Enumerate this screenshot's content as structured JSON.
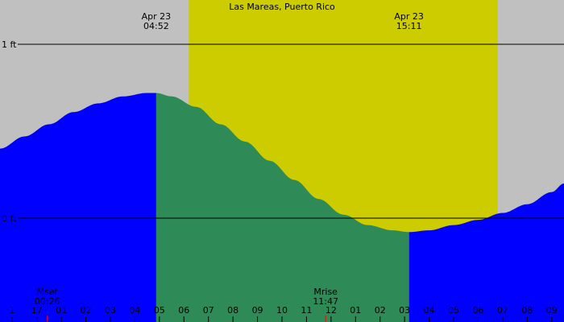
{
  "chart_data": {
    "type": "area",
    "title": "Las Mareas, Puerto Rico",
    "y_unit": "ft",
    "y_reference_lines": [
      {
        "value": 1,
        "label": "1 ft"
      },
      {
        "value": 0,
        "label": "0 ft"
      }
    ],
    "x_range_hours": [
      -1.5,
      21.5
    ],
    "x_tick_labels": [
      "1",
      "17",
      "01",
      "02",
      "03",
      "04",
      "05",
      "06",
      "07",
      "08",
      "09",
      "10",
      "11",
      "12",
      "01",
      "02",
      "03",
      "04",
      "05",
      "06",
      "07",
      "08",
      "09"
    ],
    "daylight": {
      "start_hour": 6.2,
      "end_hour": 18.8
    },
    "extremes": [
      {
        "type": "high",
        "date": "Apr 23",
        "time": "04:52",
        "hour": 4.87,
        "height_ft": 0.72
      },
      {
        "type": "low",
        "date": "Apr 23",
        "time": "15:11",
        "hour": 15.18,
        "height_ft": -0.08
      }
    ],
    "moon_events": [
      {
        "label": "Mset",
        "time": "00:26",
        "hour": 0.43
      },
      {
        "label": "Mrise",
        "time": "11:47",
        "hour": 11.78
      }
    ],
    "tide_series": {
      "name": "Tide",
      "x_hours": [
        -1.5,
        -0.5,
        0.5,
        1.5,
        2.5,
        3.5,
        4.5,
        4.87,
        5.5,
        6.5,
        7.5,
        8.5,
        9.5,
        10.5,
        11.5,
        12.5,
        13.5,
        14.5,
        15.18,
        16.0,
        17.0,
        18.0,
        19.0,
        20.0,
        21.0,
        21.5
      ],
      "heights_ft": [
        0.4,
        0.47,
        0.54,
        0.61,
        0.66,
        0.7,
        0.72,
        0.72,
        0.7,
        0.64,
        0.54,
        0.44,
        0.33,
        0.22,
        0.11,
        0.02,
        -0.04,
        -0.07,
        -0.08,
        -0.07,
        -0.04,
        -0.01,
        0.03,
        0.08,
        0.15,
        0.2
      ]
    },
    "colors": {
      "night": "#c0c0c0",
      "day": "#cccc00",
      "rising_tide": "#2e8b57",
      "falling_tide": "#0000ff",
      "moon_marker": "#ff0000"
    }
  }
}
